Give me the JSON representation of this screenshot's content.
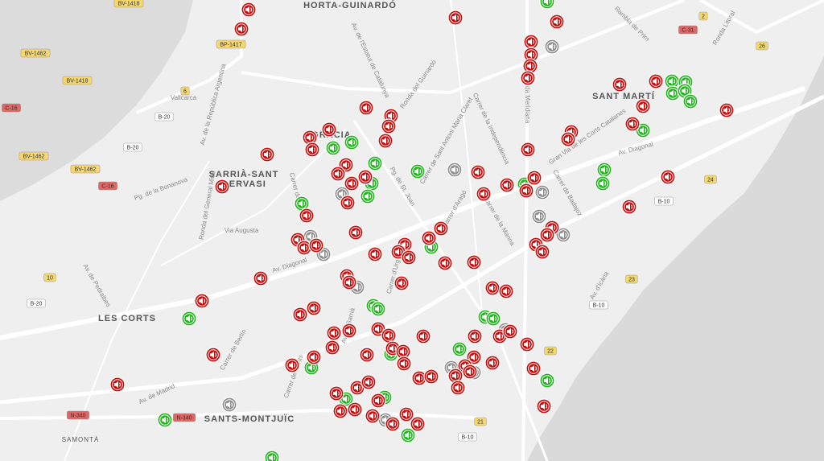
{
  "map": {
    "districts": [
      "HORTA-GUINARDÓ",
      "SANT MARTÍ",
      "GRÀCIA",
      "SARRIÀ-SANT",
      "GERVASI",
      "LES CORTS",
      "SANTS-MONTJUÏC"
    ],
    "places": [
      "SAMONTÀ",
      "Vallcarca"
    ],
    "streets": [
      "Av. de l'Estatut de Catalunya",
      "Ronda del Guinardó",
      "Carrer de Sant Antoni Maria Claret",
      "Carrer de la Independència",
      "Gran Via de les Corts Catalanes",
      "Av. Diagonal",
      "Av. Diagonal",
      "Via Augusta",
      "Carrer de Balmes",
      "Pg. de St. Joan",
      "Carrer d'Aragó",
      "Carrer de la Marina",
      "Carrer de Badajoz",
      "Av. d'Icària",
      "Av. de Pedralbes",
      "Carrer de Berlín",
      "Av. de Madrid",
      "Av. de la República Argentina",
      "Pg. de la Bonanova",
      "Ronda del General Mitre",
      "Rambla de Prim",
      "Ronda Litoral",
      "Carrer de Sants",
      "Avinguda Meridiana",
      "Av. de Sarrià",
      "Carrer d'Urgell"
    ],
    "shields": [
      "BV-1418",
      "BV-1462",
      "BV-1418",
      "BV-1462",
      "BV-1462",
      "BP-1417",
      "C-16",
      "C-16",
      "B-20",
      "B-20",
      "B-20",
      "C-31",
      "B-10",
      "B-10",
      "B-10",
      "N-340",
      "N-340",
      "26",
      "24",
      "23",
      "22",
      "21",
      "10",
      "6",
      "2"
    ]
  }
}
